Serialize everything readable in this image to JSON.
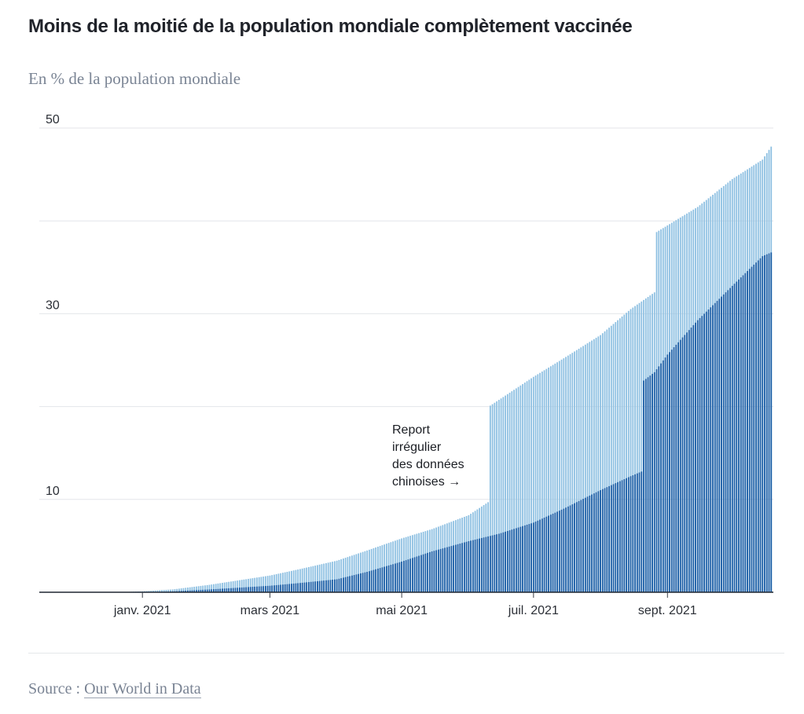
{
  "chart_data": {
    "type": "bar",
    "title": "Moins de la moitié de la population mondiale complètement vaccinée",
    "subtitle": "En % de la population mondiale",
    "ytick_labels": [
      "10",
      "30",
      "50"
    ],
    "y_grid": [
      0,
      10,
      20,
      30,
      40,
      50
    ],
    "ylim": [
      0,
      50
    ],
    "x_ticks": [
      {
        "date": "2021-01-01",
        "label": "janv. 2021"
      },
      {
        "date": "2021-03-01",
        "label": "mars 2021"
      },
      {
        "date": "2021-05-01",
        "label": "mai 2021"
      },
      {
        "date": "2021-07-01",
        "label": "juil. 2021"
      },
      {
        "date": "2021-09-01",
        "label": "sept. 2021"
      }
    ],
    "xlim": [
      "2020-11-15",
      "2021-10-20"
    ],
    "grid": true,
    "legend": "none",
    "series": [
      {
        "color": "#8ec0e2",
        "points": [
          [
            "2020-12-20",
            0.0
          ],
          [
            "2021-01-01",
            0.1
          ],
          [
            "2021-01-15",
            0.3
          ],
          [
            "2021-02-01",
            0.8
          ],
          [
            "2021-02-15",
            1.3
          ],
          [
            "2021-03-01",
            1.8
          ],
          [
            "2021-03-15",
            2.5
          ],
          [
            "2021-04-01",
            3.4
          ],
          [
            "2021-04-15",
            4.5
          ],
          [
            "2021-05-01",
            5.8
          ],
          [
            "2021-05-15",
            6.8
          ],
          [
            "2021-06-01",
            8.3
          ],
          [
            "2021-06-10",
            9.7
          ],
          [
            "2021-06-11",
            20.1
          ],
          [
            "2021-07-01",
            23.2
          ],
          [
            "2021-07-15",
            25.2
          ],
          [
            "2021-08-01",
            27.7
          ],
          [
            "2021-08-15",
            30.5
          ],
          [
            "2021-08-26",
            32.3
          ],
          [
            "2021-08-27",
            38.8
          ],
          [
            "2021-09-15",
            41.5
          ],
          [
            "2021-10-01",
            44.5
          ],
          [
            "2021-10-15",
            46.6
          ],
          [
            "2021-10-19",
            48.0
          ]
        ]
      },
      {
        "color": "#1c5ea6",
        "points": [
          [
            "2020-12-20",
            0.0
          ],
          [
            "2021-01-01",
            0.0
          ],
          [
            "2021-01-15",
            0.1
          ],
          [
            "2021-02-01",
            0.3
          ],
          [
            "2021-02-15",
            0.5
          ],
          [
            "2021-03-01",
            0.7
          ],
          [
            "2021-03-15",
            1.0
          ],
          [
            "2021-04-01",
            1.4
          ],
          [
            "2021-04-15",
            2.2
          ],
          [
            "2021-05-01",
            3.3
          ],
          [
            "2021-05-15",
            4.4
          ],
          [
            "2021-06-01",
            5.5
          ],
          [
            "2021-06-15",
            6.3
          ],
          [
            "2021-07-01",
            7.5
          ],
          [
            "2021-07-15",
            9.0
          ],
          [
            "2021-08-01",
            11.0
          ],
          [
            "2021-08-15",
            12.5
          ],
          [
            "2021-08-20",
            13.0
          ],
          [
            "2021-08-21",
            22.8
          ],
          [
            "2021-08-26",
            23.7
          ],
          [
            "2021-09-01",
            25.6
          ],
          [
            "2021-09-15",
            29.3
          ],
          [
            "2021-10-01",
            33.0
          ],
          [
            "2021-10-15",
            36.2
          ],
          [
            "2021-10-19",
            36.6
          ]
        ]
      }
    ],
    "annotation": {
      "lines": [
        "Report",
        "irrégulier",
        "des données",
        "chinoises →"
      ]
    }
  },
  "source": {
    "prefix": "Source : ",
    "link_text": "Our World in Data"
  },
  "colors": {
    "light_bar": "#8ec0e2",
    "dark_bar": "#1c5ea6",
    "grid": "#e3e6ea",
    "baseline": "#1f2631"
  }
}
